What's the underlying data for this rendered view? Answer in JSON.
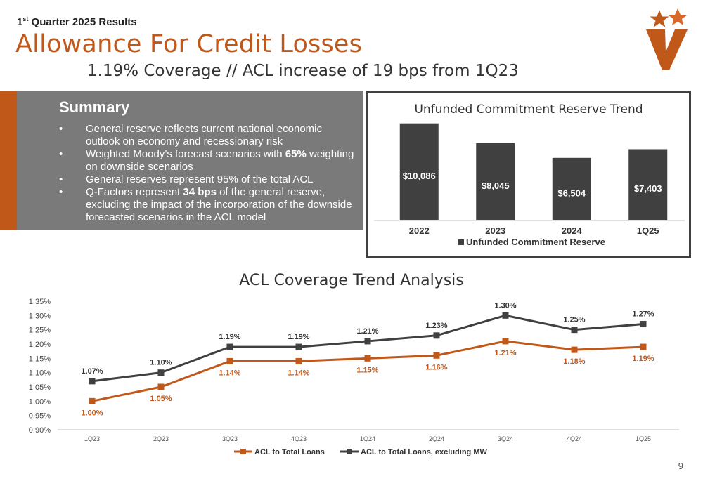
{
  "header": {
    "quarter_label_prefix": "1",
    "quarter_label_sup": "st",
    "quarter_label_suffix": " Quarter 2025 Results",
    "title": "Allowance For Credit Losses",
    "subtitle": "1.19% Coverage // ACL increase of 19 bps from 1Q23"
  },
  "summary": {
    "heading": "Summary",
    "bullets": [
      {
        "pre": "General reserve reflects current national economic outlook on economy and recessionary risk",
        "bold": "",
        "post": ""
      },
      {
        "pre": "Weighted Moody’s forecast scenarios with ",
        "bold": "65%",
        "post": " weighting on downside scenarios"
      },
      {
        "pre": "General reserves represent 95% of the total ACL",
        "bold": "",
        "post": ""
      },
      {
        "pre": "Q-Factors represent ",
        "bold": "34 bps",
        "post": " of the general reserve, excluding the impact of the incorporation of the downside forecasted scenarios in the ACL model"
      }
    ]
  },
  "colors": {
    "brand_orange": "#c0581a",
    "bar_dark": "#404040",
    "line_gray": "#404040"
  },
  "logo": {
    "icon": "star-v-logo-icon"
  },
  "page_number": "9",
  "chart_data": [
    {
      "type": "bar",
      "title": "Unfunded Commitment Reserve Trend",
      "categories": [
        "2022",
        "2023",
        "2024",
        "1Q25"
      ],
      "series": [
        {
          "name": "Unfunded Commitment Reserve",
          "values": [
            10086,
            8045,
            6504,
            7403
          ],
          "labels": [
            "$10,086",
            "$8,045",
            "$6,504",
            "$7,403"
          ]
        }
      ],
      "ylim": [
        0,
        10500
      ],
      "legend": "bottom",
      "grid": false
    },
    {
      "type": "line",
      "title": "ACL Coverage Trend Analysis",
      "categories": [
        "1Q23",
        "2Q23",
        "3Q23",
        "4Q23",
        "1Q24",
        "2Q24",
        "3Q24",
        "4Q24",
        "1Q25"
      ],
      "series": [
        {
          "name": "ACL to Total Loans",
          "values": [
            1.0,
            1.05,
            1.14,
            1.14,
            1.15,
            1.16,
            1.21,
            1.18,
            1.19
          ],
          "labels": [
            "1.00%",
            "1.05%",
            "1.14%",
            "1.14%",
            "1.15%",
            "1.16%",
            "1.21%",
            "1.18%",
            "1.19%"
          ]
        },
        {
          "name": "ACL to Total Loans, excluding MW",
          "values": [
            1.07,
            1.1,
            1.19,
            1.19,
            1.21,
            1.23,
            1.3,
            1.25,
            1.27
          ],
          "labels": [
            "1.07%",
            "1.10%",
            "1.19%",
            "1.19%",
            "1.21%",
            "1.23%",
            "1.30%",
            "1.25%",
            "1.27%"
          ]
        }
      ],
      "yticks": [
        "1.35%",
        "1.30%",
        "1.25%",
        "1.20%",
        "1.15%",
        "1.10%",
        "1.05%",
        "1.00%",
        "0.95%",
        "0.90%"
      ],
      "ylim": [
        0.9,
        1.35
      ],
      "legend": "bottom",
      "grid": false
    }
  ]
}
